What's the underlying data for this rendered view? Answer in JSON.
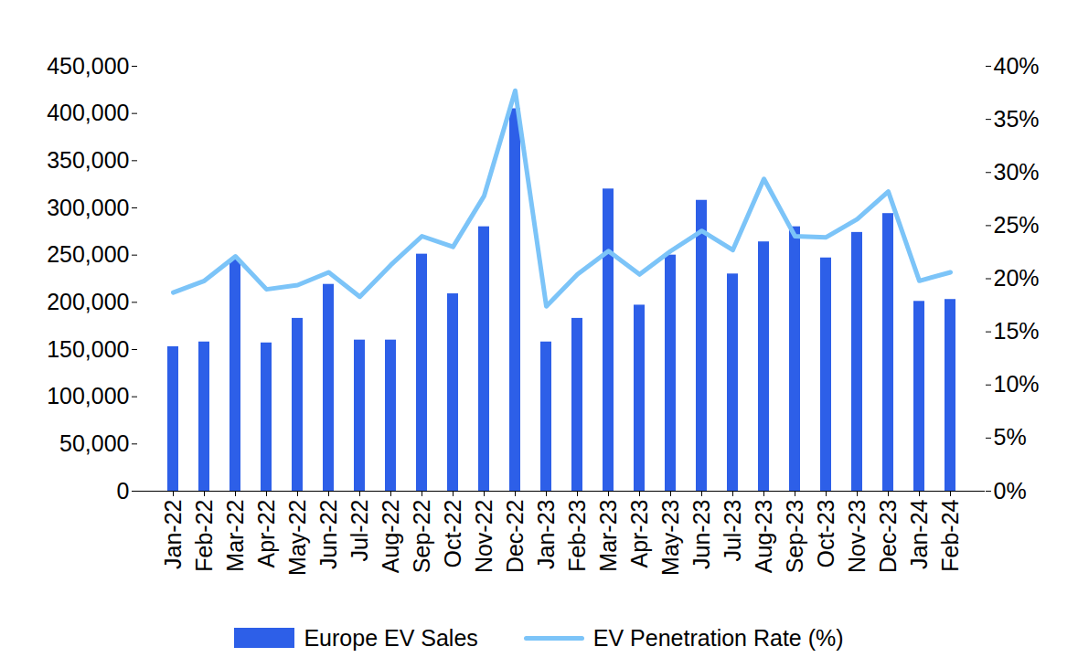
{
  "chart_data": {
    "type": "bar",
    "categories": [
      "Jan-22",
      "Feb-22",
      "Mar-22",
      "Apr-22",
      "May-22",
      "Jun-22",
      "Jul-22",
      "Aug-22",
      "Sep-22",
      "Oct-22",
      "Nov-22",
      "Dec-22",
      "Jan-23",
      "Feb-23",
      "Mar-23",
      "Apr-23",
      "May-23",
      "Jun-23",
      "Jul-23",
      "Aug-23",
      "Sep-23",
      "Oct-23",
      "Nov-23",
      "Dec-23",
      "Jan-24",
      "Feb-24"
    ],
    "series": [
      {
        "name": "Europe EV Sales",
        "type": "bar",
        "color": "#2d5fe8",
        "values": [
          153000,
          158000,
          245000,
          157000,
          183000,
          219000,
          160000,
          160000,
          251000,
          209000,
          280000,
          405000,
          158000,
          183000,
          320000,
          197000,
          250000,
          308000,
          230000,
          264000,
          280000,
          247000,
          274000,
          294000,
          201000,
          203000
        ]
      },
      {
        "name": "EV Penetration Rate (%)",
        "type": "line",
        "axis": "y2",
        "color": "#7cc4f8",
        "values": [
          18.7,
          19.8,
          22.1,
          19.0,
          19.4,
          20.6,
          18.3,
          21.3,
          24.0,
          23.0,
          27.8,
          37.7,
          17.4,
          20.4,
          22.6,
          20.4,
          22.6,
          24.5,
          22.7,
          29.4,
          24.0,
          23.9,
          25.6,
          28.2,
          19.8,
          20.6
        ]
      }
    ],
    "ylim": [
      0,
      450000
    ],
    "yticks": [
      0,
      {
        "value": 50000,
        "label": "50,000"
      },
      {
        "value": 100000,
        "label": "100,000"
      },
      {
        "value": 150000,
        "label": "150,000"
      },
      {
        "value": 200000,
        "label": "200,000"
      },
      {
        "value": 250000,
        "label": "250,000"
      },
      {
        "value": 300000,
        "label": "300,000"
      },
      {
        "value": 350000,
        "label": "350,000"
      },
      {
        "value": 400000,
        "label": "400,000"
      },
      {
        "value": 450000,
        "label": "450,000"
      }
    ],
    "y2lim": [
      0,
      40
    ],
    "y2ticks": [
      {
        "value": 0,
        "label": "0%"
      },
      {
        "value": 5,
        "label": "5%"
      },
      {
        "value": 10,
        "label": "10%"
      },
      {
        "value": 15,
        "label": "15%"
      },
      {
        "value": 20,
        "label": "20%"
      },
      {
        "value": 25,
        "label": "25%"
      },
      {
        "value": 30,
        "label": "30%"
      },
      {
        "value": 35,
        "label": "35%"
      },
      {
        "value": 40,
        "label": "40%"
      }
    ],
    "grid": false,
    "legend": "bottom"
  }
}
